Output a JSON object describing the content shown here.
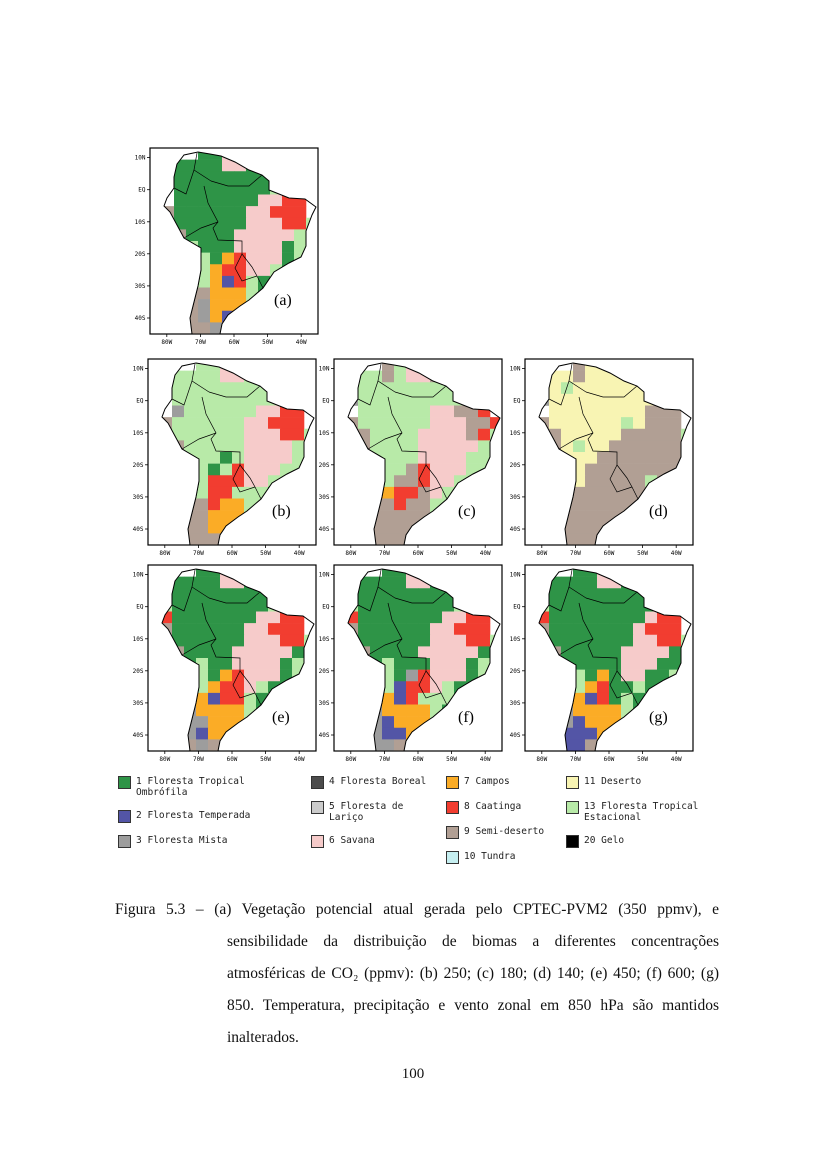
{
  "page": {
    "number": "100"
  },
  "figure": {
    "caption_lines": [
      {
        "text": "Figura 5.3 – (a) Vegetação potencial atual gerada pelo CPTEC-PVM2 (350 ppmv), e",
        "indent": false,
        "justify": true
      },
      {
        "text": "sensibilidade da distribuição de biomas a diferentes concentrações",
        "indent": true,
        "justify": true
      },
      {
        "text": "atmosféricas de CO₂ (ppmv): (b) 250; (c) 180; (d) 140; (e) 450; (f) 600; (g)",
        "indent": true,
        "justify": true
      },
      {
        "text": "850. Temperatura, precipitação e vento zonal em 850 hPa são mantidos",
        "indent": true,
        "justify": true
      },
      {
        "text": "inalterados.",
        "indent": true,
        "justify": false
      }
    ]
  },
  "axes": {
    "y_ticks": [
      "10N",
      "EQ",
      "10S",
      "20S",
      "30S",
      "40S"
    ],
    "x_ticks": [
      "80W",
      "70W",
      "60W",
      "50W",
      "40W"
    ]
  },
  "palette": {
    "G": "#2e9447",
    "g": "#b8eaa8",
    "P": "#f6cbca",
    "R": "#f23d30",
    "O": "#fbac26",
    "B": "#5355a6",
    "M": "#9d9d9d",
    "D": "#4c4c4c",
    "L": "#cbcbcb",
    "S": "#b19f94",
    "Y": "#f8f4b3",
    "C": "#c6eff1",
    "K": "#000000"
  },
  "legend": {
    "columns": [
      [
        {
          "key": "G",
          "lines": [
            "1 Floresta Tropical",
            "Ombrófila"
          ]
        },
        {
          "key": "B",
          "lines": [
            "2 Floresta Temperada"
          ]
        },
        {
          "key": "M",
          "lines": [
            "3 Floresta Mista"
          ]
        }
      ],
      [
        {
          "key": "D",
          "lines": [
            "4 Floresta Boreal"
          ]
        },
        {
          "key": "L",
          "lines": [
            "5 Floresta de",
            "Lariço"
          ]
        },
        {
          "key": "P",
          "lines": [
            "6 Savana"
          ]
        }
      ],
      [
        {
          "key": "O",
          "lines": [
            "7 Campos"
          ]
        },
        {
          "key": "R",
          "lines": [
            "8 Caatinga"
          ]
        },
        {
          "key": "S",
          "lines": [
            "9 Semi-deserto"
          ]
        },
        {
          "key": "C",
          "lines": [
            "10 Tundra"
          ]
        }
      ],
      [
        {
          "key": "Y",
          "lines": [
            "11 Deserto"
          ]
        },
        {
          "key": "g",
          "lines": [
            "13 Floresta Tropical",
            "Estacional"
          ]
        },
        {
          "key": "K",
          "lines": [
            "20 Gelo"
          ]
        }
      ]
    ]
  },
  "panels": [
    {
      "id": "a",
      "label": "(a)",
      "co2_ppmv": "350",
      "grid": [
        "....GGPP......",
        "..GGGGPPGg....",
        "..GGGGGGGGg...",
        "..GGGGGGGGgg..",
        "..GGGGGGGPPRR.",
        ".SGGGGGGPPRRR.",
        ".SGGGGGGPPPRRg",
        ".YSGGGGPPPPPg.",
        ".YSgGGGPPPPGg.",
        ".YSGgGORPPPGg.",
        ".YSSgORRPPgG..",
        ".YSSgOBRgGgg..",
        "..YSSOOOgGg...",
        "..SSMOOOgg....",
        "..SSMOBOg.....",
        "..SSSMS......."
      ]
    },
    {
      "id": "b",
      "label": "(b)",
      "co2_ppmv": "250",
      "grid": [
        "....ggPP......",
        "..ggggPPgg....",
        "..gggggggggg..",
        "..gggggggggP..",
        "..MggggggPPRR.",
        ".SggggggPPRRR.",
        ".SggggggPPPRRg",
        ".YSgggggPPPPg.",
        ".YMgggGgPPPPg.",
        ".YSggGgRPPPgg.",
        ".YSMgRRRPPgg..",
        ".YSMgRRgggGg..",
        "..YSSROOggg...",
        "..SSSOOOgg....",
        "..SSSOOg......",
        "..SSSSS......."
      ]
    },
    {
      "id": "c",
      "label": "(c)",
      "co2_ppmv": "180",
      "grid": [
        "....SgPP......",
        "..ggSgPPSg....",
        ".Mggggggggg...",
        ".Mgggggggggg..",
        "..ggggggPPSSR.",
        ".SggggggPPPSSR",
        ".YSggggPPPPSRg",
        ".YSggggPPPPPg.",
        ".YMggggPPPPgg.",
        ".YSgggSRPPPgg.",
        ".YSMgSSRPPgg..",
        ".YSMORRSPggg..",
        "..SSSRSSggg...",
        "..SSSSSSgg....",
        "..SSSSSS......",
        "..SSSSS......."
      ]
    },
    {
      "id": "d",
      "label": "(d)",
      "co2_ppmv": "140",
      "grid": [
        "....SYYY......",
        "..YYSYYYYg....",
        "..YgYYYYYYY...",
        ".MYYYYYYYYYY..",
        "..YYYYYYYYSSS.",
        ".SYYYYYYgYSSS.",
        ".YSYYYYYSSSSSg",
        ".YSYgYYSSSSSS.",
        ".YSYYYSSSSSSS.",
        ".YSSYSSSSSSSS.",
        ".YSSYSSSSSgS..",
        ".YSSSSSSSSSS..",
        "..SSSSSSSSS...",
        "..SSSSSSSS....",
        "..SSSSSS......",
        "..SSSSS......."
      ]
    },
    {
      "id": "e",
      "label": "(e)",
      "co2_ppmv": "450",
      "grid": [
        "....GGPP......",
        "..GGGGPPGg....",
        "..GGGGGGGGg...",
        ".gGGGGGGGGgg..",
        ".RGGGGGGGPPRR.",
        ".SGGGGGGPPRRR.",
        ".MGGGGGGPPPRRg",
        ".YSGGGGPPPPPG.",
        ".YMGgGGPPPPGg.",
        ".YSGgGORPPPGg.",
        ".YSSgORRPgGG..",
        ".YSSOBRRgGgg..",
        ".YSMOOOOgGg...",
        "..SMMOOOgg....",
        "..SMBOOg......",
        "..SSMSO......."
      ]
    },
    {
      "id": "f",
      "label": "(f)",
      "co2_ppmv": "600",
      "grid": [
        "....GGPP......",
        "..GGGGPPGG....",
        "..GGGGGGGGg...",
        ".gGGGGGGGGgg..",
        ".RGGGGGGGPPRR.",
        ".SGGGGGGPPRRR.",
        ".MGGGGGGPPPRRg",
        ".YSGGGGPPPPPG.",
        ".YMGgGGGPPPGg.",
        ".YSGgGMRPPPGg.",
        ".YSSgBRRPgGG..",
        ".YSSOBRgggGg..",
        ".YSMOOOOgGg...",
        "..SMBOOOgg....",
        "..MMBBOg......",
        "..MMMSO......."
      ]
    },
    {
      "id": "g",
      "label": "(g)",
      "co2_ppmv": "850",
      "grid": [
        "....GGPG......",
        "..GGGGPPGG....",
        "..GGGGGGGGG...",
        ".gGGGGGGGGGg..",
        ".RGGGGGGGGPRR.",
        ".SGGGGGGGPRRR.",
        ".MGGGGGGGPPRRg",
        ".YSGGGGGPPPPG.",
        ".YMGGGGGPPPGG.",
        ".YSGgGOGPPGGg.",
        ".YSSgORGGgGG..",
        ".YSSOBRGgGgg..",
        ".YSMOOOOgGg...",
        "..SMBOOOgg....",
        "..MBBBOg......",
        "..MBBSO......."
      ]
    }
  ]
}
